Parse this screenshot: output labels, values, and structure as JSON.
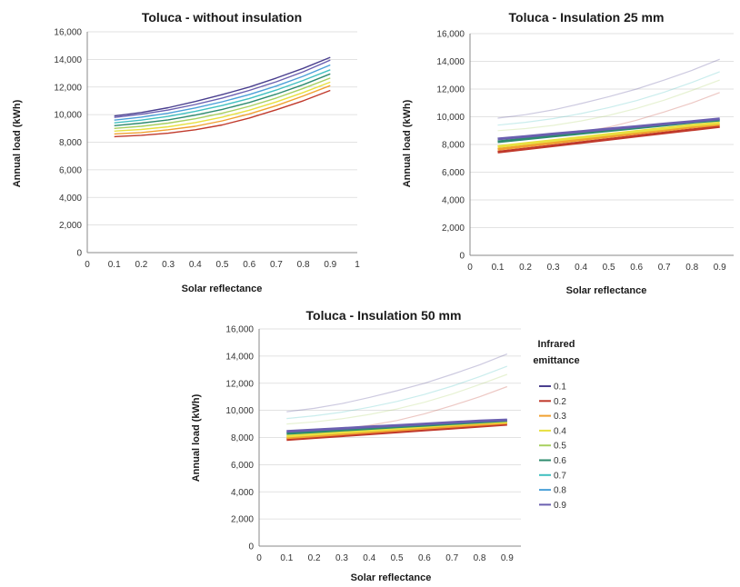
{
  "chart_data": [
    {
      "type": "line",
      "title": "Toluca - without insulation",
      "xlabel": "Solar reflectance",
      "ylabel": "Annual load  (kWh)",
      "xlim": [
        0,
        1
      ],
      "ylim": [
        0,
        16000
      ],
      "x_ticks": [
        "0",
        "0.1",
        "0.2",
        "0.3",
        "0.4",
        "0.5",
        "0.6",
        "0.7",
        "0.8",
        "0.9",
        "1"
      ],
      "y_ticks": [
        "0",
        "2,000",
        "4,000",
        "6,000",
        "8,000",
        "10,000",
        "12,000",
        "14,000",
        "16,000"
      ],
      "x": [
        0.1,
        0.2,
        0.3,
        0.4,
        0.5,
        0.6,
        0.7,
        0.8,
        0.9
      ],
      "series": [
        {
          "name": "0.1",
          "faded": false,
          "values": [
            9900,
            10150,
            10500,
            10950,
            11450,
            12000,
            12650,
            13350,
            14150
          ]
        },
        {
          "name": "0.2",
          "faded": false,
          "values": [
            8400,
            8500,
            8650,
            8900,
            9250,
            9750,
            10350,
            11000,
            11750
          ]
        },
        {
          "name": "0.3",
          "faded": false,
          "values": [
            8600,
            8700,
            8900,
            9150,
            9550,
            10050,
            10650,
            11350,
            12100
          ]
        },
        {
          "name": "0.4",
          "faded": false,
          "values": [
            8800,
            8920,
            9120,
            9420,
            9820,
            10320,
            10920,
            11600,
            12350
          ]
        },
        {
          "name": "0.5",
          "faded": false,
          "values": [
            9000,
            9150,
            9380,
            9700,
            10100,
            10600,
            11200,
            11900,
            12650
          ]
        },
        {
          "name": "0.6",
          "faded": false,
          "values": [
            9200,
            9380,
            9620,
            9960,
            10380,
            10880,
            11480,
            12170,
            12950
          ]
        },
        {
          "name": "0.7",
          "faded": false,
          "values": [
            9400,
            9600,
            9870,
            10230,
            10660,
            11170,
            11780,
            12480,
            13250
          ]
        },
        {
          "name": "0.8",
          "faded": false,
          "values": [
            9600,
            9820,
            10100,
            10480,
            10930,
            11450,
            12070,
            12780,
            13600
          ]
        },
        {
          "name": "0.9",
          "faded": false,
          "values": [
            9800,
            10030,
            10330,
            10730,
            11200,
            11750,
            12380,
            13100,
            13950
          ]
        }
      ]
    },
    {
      "type": "line",
      "title": "Toluca - Insulation 25 mm",
      "xlabel": "Solar reflectance",
      "ylabel": "Annual load  (kWh)",
      "xlim": [
        0,
        0.95
      ],
      "ylim": [
        0,
        16000
      ],
      "x_ticks": [
        "0",
        "0.1",
        "0.2",
        "0.3",
        "0.4",
        "0.5",
        "0.6",
        "0.7",
        "0.8",
        "0.9"
      ],
      "y_ticks": [
        "0",
        "2,000",
        "4,000",
        "6,000",
        "8,000",
        "10,000",
        "12,000",
        "14,000",
        "16,000"
      ],
      "x": [
        0.1,
        0.2,
        0.3,
        0.4,
        0.5,
        0.6,
        0.7,
        0.8,
        0.9
      ],
      "series": [
        {
          "name": "0.1",
          "faded": true,
          "values": [
            9900,
            10150,
            10500,
            10950,
            11450,
            12000,
            12650,
            13350,
            14150
          ]
        },
        {
          "name": "0.2",
          "faded": true,
          "values": [
            8400,
            8500,
            8650,
            8900,
            9250,
            9750,
            10350,
            11000,
            11750
          ]
        },
        {
          "name": "0.5",
          "faded": true,
          "values": [
            9000,
            9150,
            9380,
            9700,
            10100,
            10600,
            11200,
            11900,
            12650
          ]
        },
        {
          "name": "0.7",
          "faded": true,
          "values": [
            9400,
            9600,
            9870,
            10230,
            10660,
            11170,
            11780,
            12480,
            13250
          ]
        },
        {
          "name": "0.2",
          "faded": false,
          "values": [
            7450,
            7680,
            7910,
            8140,
            8370,
            8600,
            8830,
            9060,
            9290
          ]
        },
        {
          "name": "0.3",
          "faded": false,
          "values": [
            7650,
            7880,
            8110,
            8340,
            8570,
            8800,
            9030,
            9260,
            9450
          ]
        },
        {
          "name": "0.4",
          "faded": false,
          "values": [
            7850,
            8070,
            8290,
            8510,
            8730,
            8950,
            9170,
            9390,
            9550
          ]
        },
        {
          "name": "0.6",
          "faded": false,
          "values": [
            8200,
            8400,
            8600,
            8800,
            9000,
            9200,
            9400,
            9600,
            9750
          ]
        },
        {
          "name": "0.9",
          "faded": false,
          "values": [
            8400,
            8580,
            8760,
            8940,
            9120,
            9300,
            9480,
            9660,
            9850
          ]
        }
      ]
    },
    {
      "type": "line",
      "title": "Toluca - Insulation 50 mm",
      "xlabel": "Solar reflectance",
      "ylabel": "Annual load  (kWh)",
      "xlim": [
        0,
        0.95
      ],
      "ylim": [
        0,
        16000
      ],
      "x_ticks": [
        "0",
        "0.1",
        "0.2",
        "0.3",
        "0.4",
        "0.5",
        "0.6",
        "0.7",
        "0.8",
        "0.9"
      ],
      "y_ticks": [
        "0",
        "2,000",
        "4,000",
        "6,000",
        "8,000",
        "10,000",
        "12,000",
        "14,000",
        "16,000"
      ],
      "x": [
        0.1,
        0.2,
        0.3,
        0.4,
        0.5,
        0.6,
        0.7,
        0.8,
        0.9
      ],
      "series": [
        {
          "name": "0.1",
          "faded": true,
          "values": [
            9900,
            10150,
            10500,
            10950,
            11450,
            12000,
            12650,
            13350,
            14150
          ]
        },
        {
          "name": "0.2",
          "faded": true,
          "values": [
            8400,
            8500,
            8650,
            8900,
            9250,
            9750,
            10350,
            11000,
            11750
          ]
        },
        {
          "name": "0.5",
          "faded": true,
          "values": [
            9000,
            9150,
            9380,
            9700,
            10100,
            10600,
            11200,
            11900,
            12650
          ]
        },
        {
          "name": "0.7",
          "faded": true,
          "values": [
            9400,
            9600,
            9870,
            10230,
            10660,
            11170,
            11780,
            12480,
            13250
          ]
        },
        {
          "name": "0.2",
          "faded": false,
          "values": [
            7850,
            7990,
            8130,
            8270,
            8410,
            8550,
            8690,
            8830,
            8970
          ]
        },
        {
          "name": "0.3",
          "faded": false,
          "values": [
            7980,
            8120,
            8260,
            8400,
            8540,
            8680,
            8820,
            8960,
            9080
          ]
        },
        {
          "name": "0.4",
          "faded": false,
          "values": [
            8100,
            8240,
            8380,
            8520,
            8660,
            8800,
            8940,
            9070,
            9150
          ]
        },
        {
          "name": "0.6",
          "faded": false,
          "values": [
            8300,
            8420,
            8540,
            8660,
            8780,
            8900,
            9020,
            9140,
            9250
          ]
        },
        {
          "name": "0.9",
          "faded": false,
          "values": [
            8450,
            8560,
            8670,
            8780,
            8890,
            9000,
            9110,
            9220,
            9300
          ]
        }
      ]
    }
  ],
  "legend": {
    "title_line1": "Infrared",
    "title_line2": "emittance",
    "items": [
      {
        "label": "0.1",
        "color": "#4a3f8f"
      },
      {
        "label": "0.2",
        "color": "#c0392b"
      },
      {
        "label": "0.3",
        "color": "#f0a030"
      },
      {
        "label": "0.4",
        "color": "#e8e040"
      },
      {
        "label": "0.5",
        "color": "#a8d060"
      },
      {
        "label": "0.6",
        "color": "#2e8b6e"
      },
      {
        "label": "0.7",
        "color": "#40c0c0"
      },
      {
        "label": "0.8",
        "color": "#4aa0d8"
      },
      {
        "label": "0.9",
        "color": "#6a5fb0"
      }
    ]
  }
}
